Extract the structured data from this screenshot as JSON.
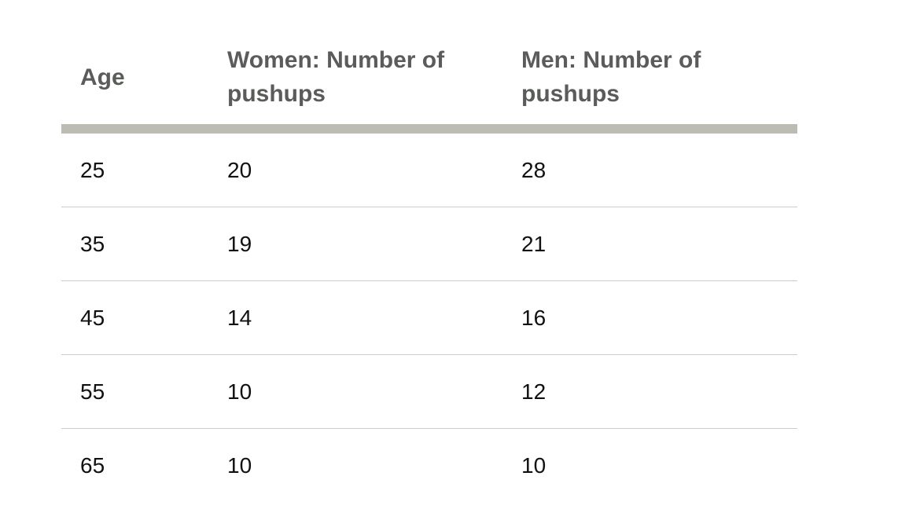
{
  "table": {
    "headers": [
      "Age",
      "Women: Number of pushups",
      "Men: Number of pushups"
    ],
    "rows": [
      [
        "25",
        "20",
        "28"
      ],
      [
        "35",
        "19",
        "21"
      ],
      [
        "45",
        "14",
        "16"
      ],
      [
        "55",
        "10",
        "12"
      ],
      [
        "65",
        "10",
        "10"
      ]
    ]
  }
}
